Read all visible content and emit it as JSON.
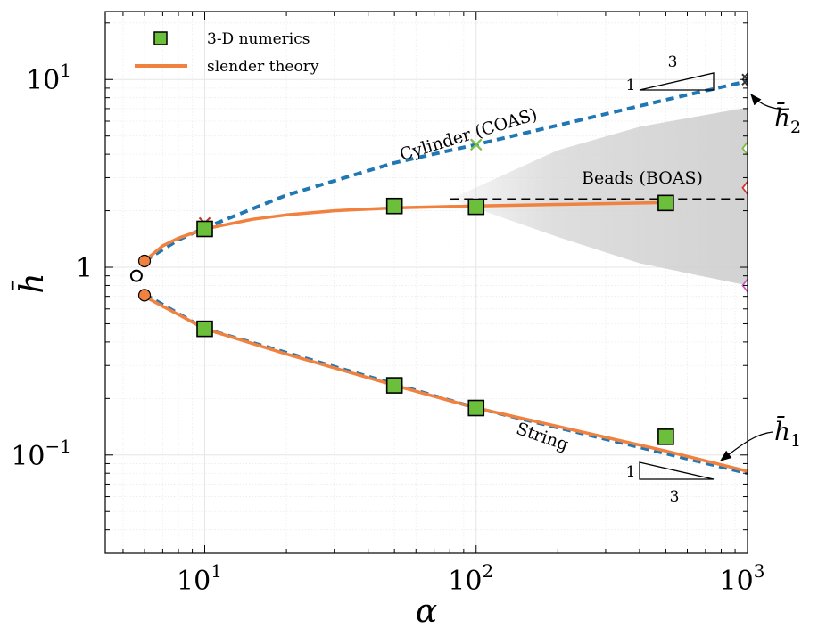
{
  "chart_data": {
    "type": "line",
    "xlabel": "α",
    "ylabel": "h̄",
    "x_scale": "log",
    "y_scale": "log",
    "xlim": [
      4.3,
      1000
    ],
    "ylim": [
      0.03,
      23
    ],
    "grid": true,
    "legend_position": "top-left",
    "x_ticks": [
      {
        "value": 10,
        "base": "10",
        "exp": "1"
      },
      {
        "value": 100,
        "base": "10",
        "exp": "2"
      },
      {
        "value": 1000,
        "base": "10",
        "exp": "3"
      }
    ],
    "y_ticks": [
      {
        "value": 0.1,
        "base": "10",
        "exp": "−1"
      },
      {
        "value": 1,
        "base": "1",
        "exp": ""
      },
      {
        "value": 10,
        "base": "10",
        "exp": "1"
      }
    ],
    "legend": [
      {
        "label": "3-D numerics",
        "marker": "square",
        "color": "#6bbf3a"
      },
      {
        "label": "slender theory",
        "marker": "line",
        "color": "#f0813f"
      }
    ],
    "series": [
      {
        "name": "3-D numerics",
        "style": "square",
        "color": "#6bbf3a",
        "points": [
          [
            10,
            1.6
          ],
          [
            50,
            2.12
          ],
          [
            100,
            2.1
          ],
          [
            500,
            2.2
          ],
          [
            10,
            0.47
          ],
          [
            50,
            0.235
          ],
          [
            100,
            0.178
          ],
          [
            500,
            0.125
          ]
        ]
      },
      {
        "name": "slender theory",
        "style": "line",
        "color": "#f0813f",
        "branches": [
          [
            [
              6.0,
              1.08
            ],
            [
              7,
              1.3
            ],
            [
              8,
              1.43
            ],
            [
              10,
              1.6
            ],
            [
              15,
              1.8
            ],
            [
              20,
              1.9
            ],
            [
              30,
              2.0
            ],
            [
              50,
              2.07
            ],
            [
              100,
              2.12
            ],
            [
              200,
              2.16
            ],
            [
              500,
              2.21
            ]
          ],
          [
            [
              6.0,
              0.7
            ],
            [
              7,
              0.62
            ],
            [
              8,
              0.56
            ],
            [
              10,
              0.47
            ],
            [
              20,
              0.345
            ],
            [
              50,
              0.235
            ],
            [
              100,
              0.178
            ],
            [
              200,
              0.142
            ],
            [
              500,
              0.105
            ],
            [
              1000,
              0.082
            ]
          ]
        ]
      },
      {
        "style": "dashed",
        "color": "#1f77b4",
        "branches": [
          [
            [
              6.0,
              1.08
            ],
            [
              8,
              1.4
            ],
            [
              10,
              1.62
            ],
            [
              20,
              2.42
            ],
            [
              50,
              3.6
            ],
            [
              100,
              4.5
            ],
            [
              200,
              5.7
            ],
            [
              500,
              7.8
            ],
            [
              1000,
              9.8
            ]
          ],
          [
            [
              6.0,
              0.72
            ],
            [
              10,
              0.47
            ],
            [
              100,
              0.178
            ],
            [
              1000,
              0.08
            ]
          ]
        ]
      },
      {
        "style": "black-dashed",
        "color": "#000000",
        "points": [
          [
            80,
            2.3
          ],
          [
            1000,
            2.3
          ]
        ]
      }
    ],
    "markers": [
      {
        "kind": "circle-open",
        "x": 5.6,
        "y": 0.9,
        "color": "#000000"
      },
      {
        "kind": "circle-filled",
        "x": 6.0,
        "y": 1.08,
        "color": "#f0813f"
      },
      {
        "kind": "circle-filled",
        "x": 6.0,
        "y": 0.71,
        "color": "#f0813f"
      },
      {
        "kind": "x",
        "x": 100,
        "y": 4.5,
        "color": "#7ac142"
      },
      {
        "kind": "x",
        "x": 10,
        "y": 1.72,
        "color": "#c0392b"
      },
      {
        "kind": "diamond",
        "x": 1000,
        "y": 4.3,
        "color": "#7ac142"
      },
      {
        "kind": "diamond",
        "x": 1000,
        "y": 2.65,
        "color": "#d9342b"
      },
      {
        "kind": "diamond",
        "x": 1000,
        "y": 0.8,
        "color": "#cc59c7"
      },
      {
        "kind": "star",
        "x": 1000,
        "y": 10,
        "color": "#333333"
      }
    ],
    "shaded_region": {
      "color": "#d0d0d0",
      "upper": [
        [
          80,
          2.3
        ],
        [
          200,
          4.2
        ],
        [
          400,
          5.6
        ],
        [
          1000,
          7.1
        ]
      ],
      "lower": [
        [
          80,
          2.3
        ],
        [
          200,
          1.45
        ],
        [
          400,
          1.05
        ],
        [
          1000,
          0.8
        ]
      ]
    },
    "annotations": [
      {
        "name": "cylinder",
        "text": "Cylinder (COAS)"
      },
      {
        "name": "beads",
        "text": "Beads (BOAS)"
      },
      {
        "name": "string",
        "text": "String"
      }
    ],
    "slope_triangles": [
      {
        "name": "upper",
        "run": "3",
        "rise": "1"
      },
      {
        "name": "lower",
        "run": "3",
        "rise": "1"
      }
    ],
    "side_labels": [
      {
        "name": "h2",
        "base": "h̄",
        "sub": "2"
      },
      {
        "name": "h1",
        "base": "h̄",
        "sub": "1"
      }
    ]
  }
}
